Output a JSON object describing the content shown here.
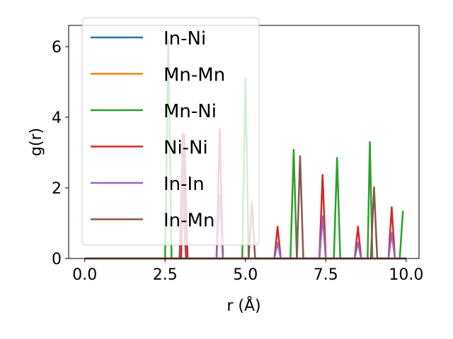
{
  "chart_data": {
    "type": "line",
    "xlabel": "r (Å)",
    "ylabel": "g(r)",
    "xlim": [
      -0.5,
      10.4
    ],
    "ylim": [
      0,
      6.6
    ],
    "xticks": [
      0.0,
      2.5,
      5.0,
      7.5,
      10.0
    ],
    "xtick_labels": [
      "0.0",
      "2.5",
      "5.0",
      "7.5",
      "10.0"
    ],
    "yticks": [
      0,
      2,
      4,
      6
    ],
    "ytick_labels": [
      "0",
      "2",
      "4",
      "6"
    ],
    "grid": false,
    "legend_position": "upper-left",
    "series": [
      {
        "name": "In-Ni",
        "color": "#1f77b4",
        "x": [
          0,
          10
        ],
        "y": [
          0,
          0
        ]
      },
      {
        "name": "Mn-Mn",
        "color": "#ff7f0e",
        "x": [
          0,
          10
        ],
        "y": [
          0,
          0
        ]
      },
      {
        "name": "Mn-Ni",
        "color": "#2ca02c",
        "x": [
          0,
          2.5,
          2.6,
          2.7,
          4.9,
          5.0,
          5.1,
          6.4,
          6.5,
          6.6,
          7.75,
          7.85,
          7.95,
          8.8,
          8.87,
          8.95,
          9.8,
          9.9
        ],
        "y": [
          0,
          0,
          6.2,
          0,
          0,
          5.1,
          0,
          0,
          3.08,
          0,
          0,
          2.85,
          0,
          0,
          3.3,
          0,
          0,
          1.35
        ]
      },
      {
        "name": "Ni-Ni",
        "color": "#d62728",
        "x": [
          0,
          3.0,
          3.1,
          3.2,
          4.1,
          4.2,
          4.3,
          5.9,
          6.0,
          6.1,
          7.3,
          7.4,
          7.5,
          8.4,
          8.5,
          8.6,
          9.45,
          9.55,
          9.65,
          10
        ],
        "y": [
          0,
          0,
          3.5,
          0,
          0,
          3.65,
          0,
          0,
          0.9,
          0,
          0,
          2.37,
          0,
          0,
          0.9,
          0,
          0,
          1.45,
          0,
          0
        ]
      },
      {
        "name": "In-In",
        "color": "#9467bd",
        "x": [
          0,
          2.95,
          3.05,
          3.15,
          4.1,
          4.2,
          4.3,
          5.9,
          6.0,
          6.1,
          7.3,
          7.4,
          7.5,
          8.4,
          8.5,
          8.6,
          9.45,
          9.55,
          9.65,
          10
        ],
        "y": [
          0,
          0,
          1.75,
          0,
          0,
          1.8,
          0,
          0,
          0.45,
          0,
          0,
          1.2,
          0,
          0,
          0.45,
          0,
          0,
          0.72,
          0,
          0
        ]
      },
      {
        "name": "In-Mn",
        "color": "#8c564b",
        "x": [
          0,
          2.95,
          3.05,
          3.15,
          5.1,
          5.2,
          5.3,
          6.6,
          6.7,
          6.8,
          8.9,
          9.0,
          9.1,
          10
        ],
        "y": [
          0,
          0,
          3.55,
          0,
          0,
          1.6,
          0,
          0,
          2.9,
          0,
          0,
          2.02,
          0,
          0
        ]
      }
    ]
  }
}
